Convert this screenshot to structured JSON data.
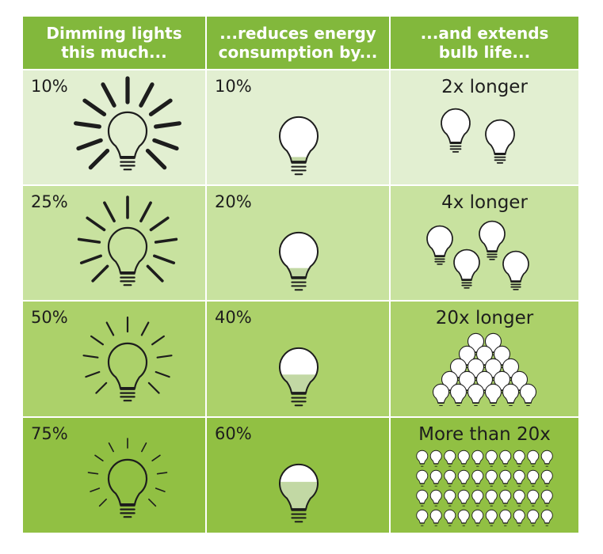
{
  "headers": [
    "Dimming lights\nthis much...",
    "...reduces energy\nconsumption by...",
    "...and extends\nbulb life..."
  ],
  "rows": [
    {
      "dimming": "10%",
      "energy": "10%",
      "life": "2x longer",
      "fill": 0.1,
      "ray_level": 4,
      "bulb_count": 2
    },
    {
      "dimming": "25%",
      "energy": "20%",
      "life": "4x longer",
      "fill": 0.2,
      "ray_level": 3,
      "bulb_count": 4
    },
    {
      "dimming": "50%",
      "energy": "40%",
      "life": "20x longer",
      "fill": 0.4,
      "ray_level": 2,
      "bulb_count": 20
    },
    {
      "dimming": "75%",
      "energy": "60%",
      "life": "More than 20x",
      "fill": 0.6,
      "ray_level": 1,
      "bulb_count": 40
    }
  ],
  "colors": {
    "header": "#82b83c",
    "row_backgrounds": [
      "#e2efd1",
      "#c8e29f",
      "#acd16a",
      "#91c043"
    ],
    "ink": "#1d1d1d",
    "bulb_glass": "#ffffff",
    "bulb_dimmed": "#c2d8a4"
  },
  "icons": [
    "light-bulb-icon",
    "light-rays-icon"
  ]
}
